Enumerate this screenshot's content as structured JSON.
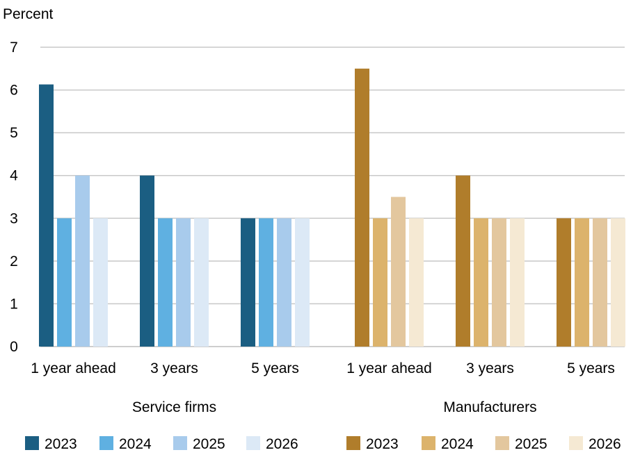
{
  "chart_data": {
    "type": "bar",
    "ylabel": "Percent",
    "ylim": [
      0,
      7
    ],
    "yticks": [
      "0",
      "1",
      "2",
      "3",
      "4",
      "5",
      "6",
      "7"
    ],
    "grid": true,
    "legend_position": "bottom",
    "groups": [
      {
        "name": "Service firms",
        "categories": [
          "1 year ahead",
          "3 years",
          "5 years"
        ],
        "series": [
          {
            "name": "2023",
            "color": "#1b5e82",
            "values": [
              6.13,
              4,
              3
            ]
          },
          {
            "name": "2024",
            "color": "#5fb0e1",
            "values": [
              3,
              3,
              3
            ]
          },
          {
            "name": "2025",
            "color": "#a8cbec",
            "values": [
              4,
              3,
              3
            ]
          },
          {
            "name": "2026",
            "color": "#dce9f6",
            "values": [
              3,
              3,
              3
            ]
          }
        ]
      },
      {
        "name": "Manufacturers",
        "categories": [
          "1 year ahead",
          "3 years",
          "5 years"
        ],
        "series": [
          {
            "name": "2023",
            "color": "#b07d2b",
            "values": [
              6.5,
              4,
              3
            ]
          },
          {
            "name": "2024",
            "color": "#dcb36c",
            "values": [
              3,
              3,
              3
            ]
          },
          {
            "name": "2025",
            "color": "#e3c79e",
            "values": [
              3.5,
              3,
              3
            ]
          },
          {
            "name": "2026",
            "color": "#f5e9d3",
            "values": [
              3,
              3,
              3
            ]
          }
        ]
      }
    ]
  }
}
